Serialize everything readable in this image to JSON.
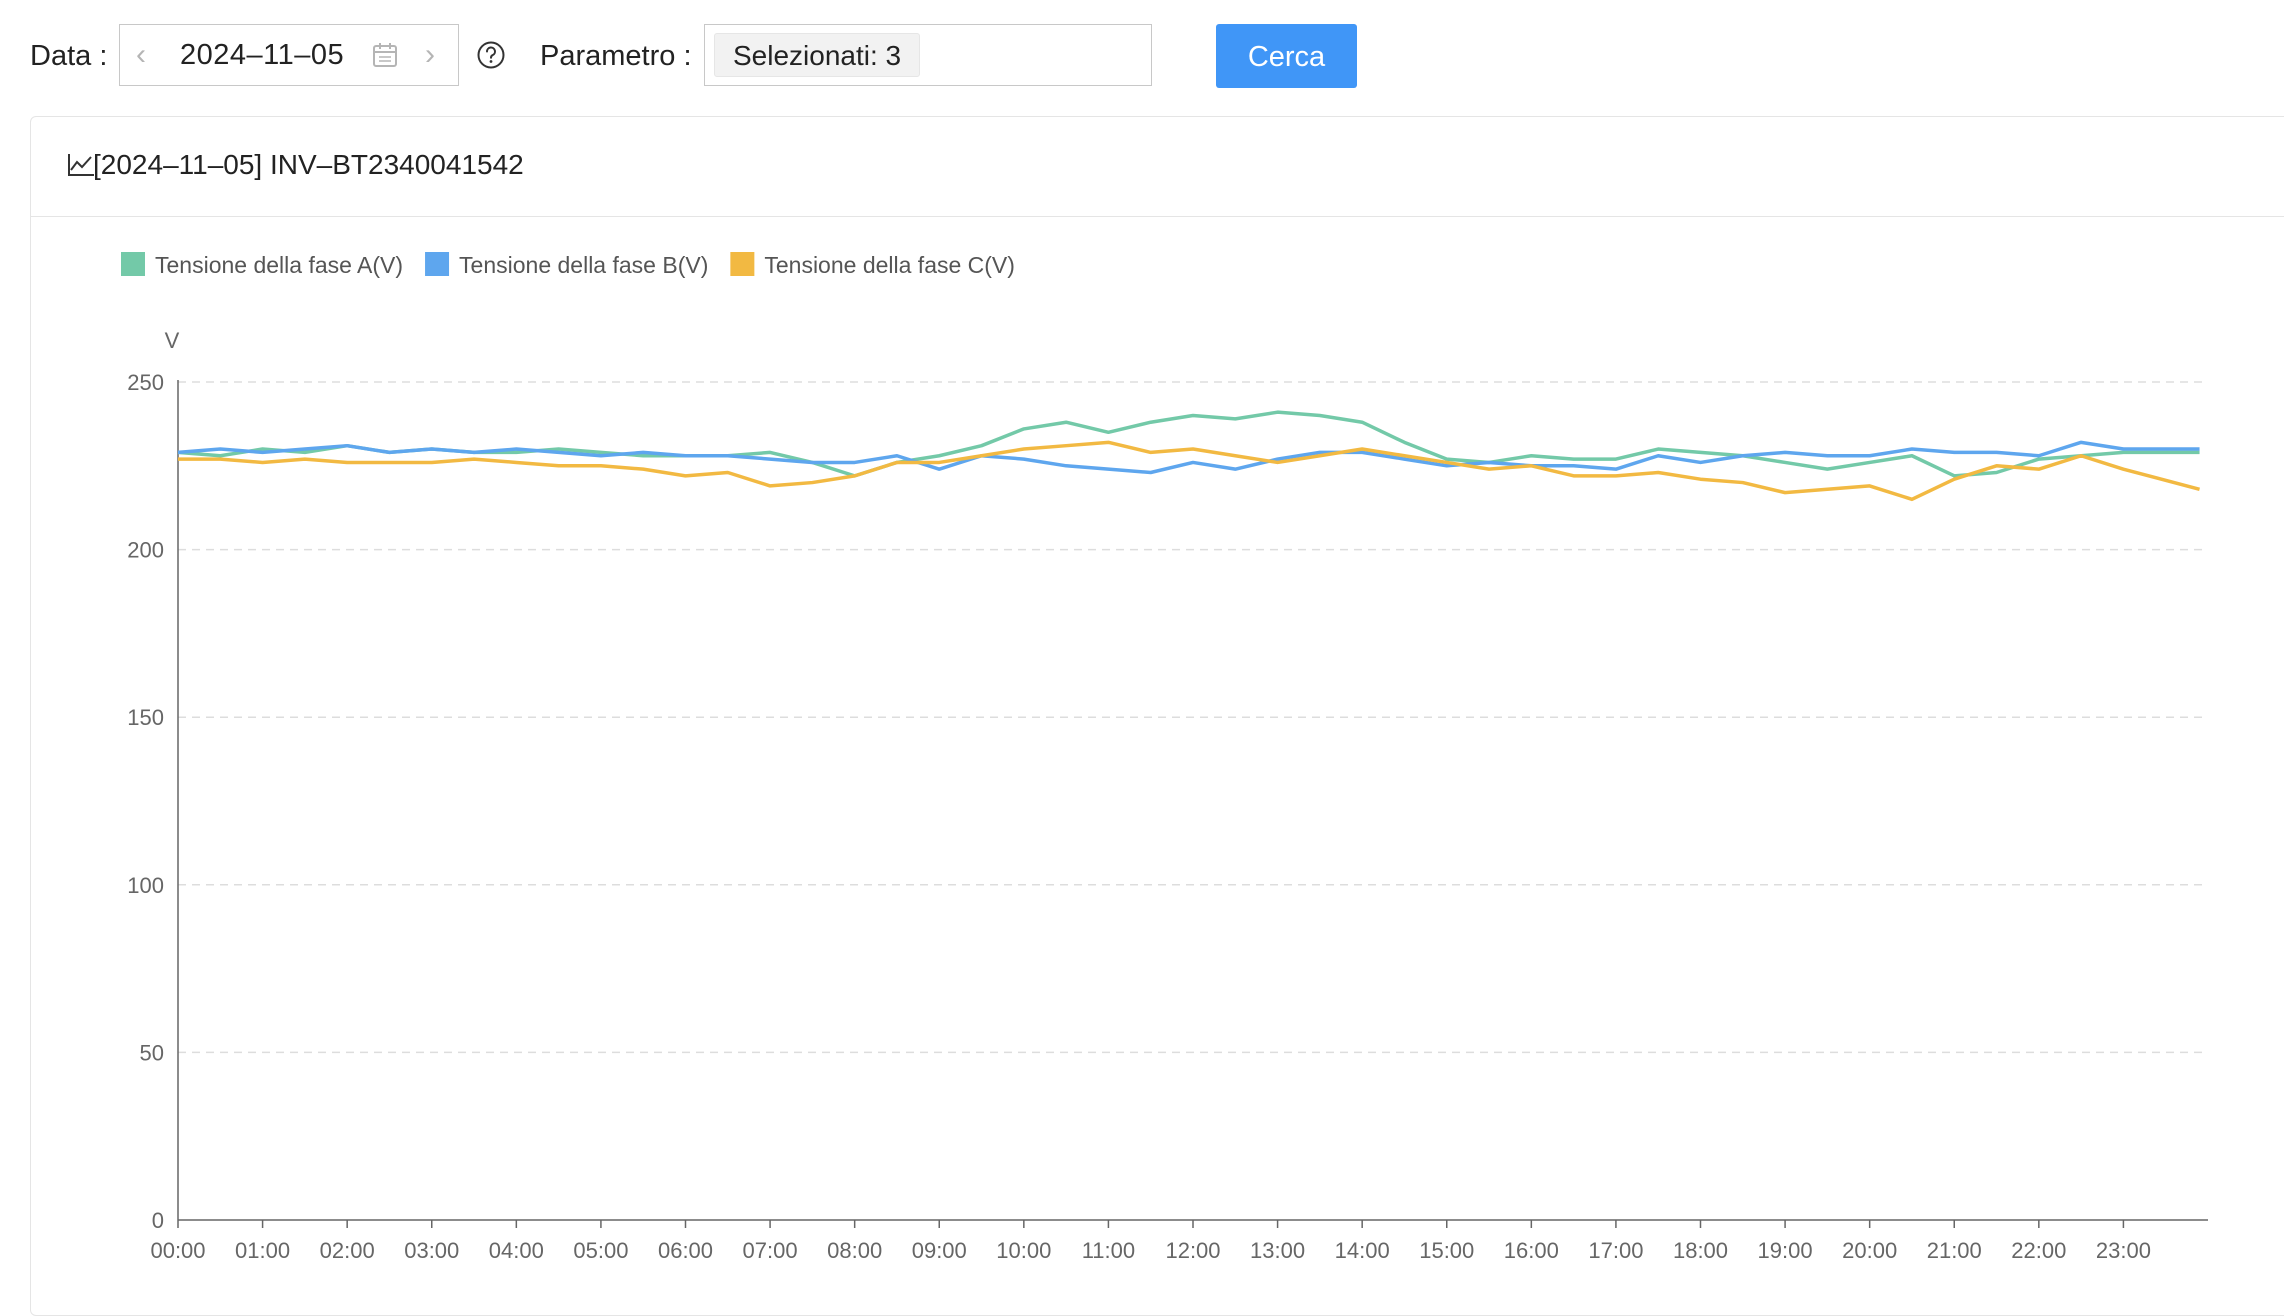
{
  "toolbar": {
    "date_label": "Data",
    "date_value": "2024–11–05",
    "param_label": "Parametro",
    "param_value": "Selezionati: 3",
    "search_label": "Cerca",
    "accent_color": "#4096f7"
  },
  "panel": {
    "title": "[2024–11–05] INV–BT2340041542"
  },
  "icons": [
    "chevron-left-icon",
    "calendar-icon",
    "chevron-right-icon",
    "help-icon",
    "line-chart-icon"
  ],
  "chart_data": {
    "type": "line",
    "ylabel": "V",
    "ylim": [
      0,
      250
    ],
    "yticks": [
      0,
      50,
      100,
      150,
      200,
      250
    ],
    "xticks": [
      "00:00",
      "01:00",
      "02:00",
      "03:00",
      "04:00",
      "05:00",
      "06:00",
      "07:00",
      "08:00",
      "09:00",
      "10:00",
      "11:00",
      "12:00",
      "13:00",
      "14:00",
      "15:00",
      "16:00",
      "17:00",
      "18:00",
      "19:00",
      "20:00",
      "21:00",
      "22:00",
      "23:00"
    ],
    "x_hours": [
      0,
      0.5,
      1,
      1.5,
      2,
      2.5,
      3,
      3.5,
      4,
      4.5,
      5,
      5.5,
      6,
      6.5,
      7,
      7.5,
      8,
      8.5,
      9,
      9.5,
      10,
      10.5,
      11,
      11.5,
      12,
      12.5,
      13,
      13.5,
      14,
      14.5,
      15,
      15.5,
      16,
      16.5,
      17,
      17.5,
      18,
      18.5,
      19,
      19.5,
      20,
      20.5,
      21,
      21.5,
      22,
      22.5,
      23,
      23.9
    ],
    "legend_position": "top-left",
    "grid": true,
    "series": [
      {
        "name": "Tensione della fase A(V)",
        "color": "#73c9a8",
        "values": [
          229,
          228,
          230,
          229,
          231,
          229,
          230,
          229,
          229,
          230,
          229,
          228,
          228,
          228,
          229,
          226,
          222,
          226,
          228,
          231,
          236,
          238,
          235,
          238,
          240,
          239,
          241,
          240,
          238,
          232,
          227,
          226,
          228,
          227,
          227,
          230,
          229,
          228,
          226,
          224,
          226,
          228,
          222,
          223,
          227,
          228,
          229,
          229
        ]
      },
      {
        "name": "Tensione della fase B(V)",
        "color": "#5ea6ee",
        "values": [
          229,
          230,
          229,
          230,
          231,
          229,
          230,
          229,
          230,
          229,
          228,
          229,
          228,
          228,
          227,
          226,
          226,
          228,
          224,
          228,
          227,
          225,
          224,
          223,
          226,
          224,
          227,
          229,
          229,
          227,
          225,
          226,
          225,
          225,
          224,
          228,
          226,
          228,
          229,
          228,
          228,
          230,
          229,
          229,
          228,
          232,
          230,
          230
        ]
      },
      {
        "name": "Tensione della fase C(V)",
        "color": "#f2b942",
        "values": [
          227,
          227,
          226,
          227,
          226,
          226,
          226,
          227,
          226,
          225,
          225,
          224,
          222,
          223,
          219,
          220,
          222,
          226,
          226,
          228,
          230,
          231,
          232,
          229,
          230,
          228,
          226,
          228,
          230,
          228,
          226,
          224,
          225,
          222,
          222,
          223,
          221,
          220,
          217,
          218,
          219,
          215,
          221,
          225,
          224,
          228,
          224,
          218
        ]
      }
    ]
  }
}
